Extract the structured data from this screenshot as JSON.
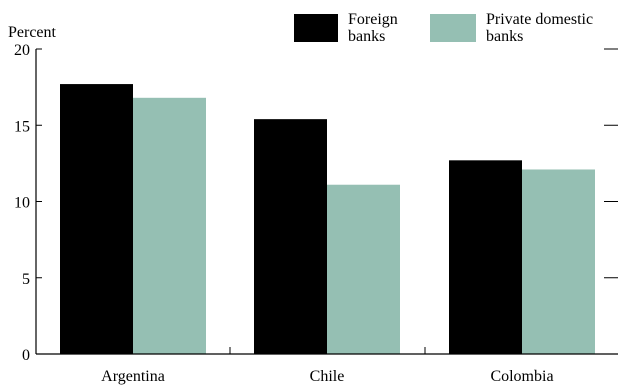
{
  "chart_data": {
    "type": "bar",
    "ylabel": "Percent",
    "ylim": [
      0,
      20
    ],
    "yticks": [
      0,
      5,
      10,
      15,
      20
    ],
    "categories": [
      "Argentina",
      "Chile",
      "Colombia"
    ],
    "series": [
      {
        "name": "Foreign banks",
        "legend_lines": [
          "Foreign",
          "banks"
        ],
        "color": "#000000",
        "values": [
          17.7,
          15.4,
          12.7
        ]
      },
      {
        "name": "Private domestic banks",
        "legend_lines": [
          "Private domestic",
          "banks"
        ],
        "color": "#95bfb3",
        "values": [
          16.8,
          11.1,
          12.1
        ]
      }
    ],
    "legend_position": "top-right",
    "grid": false
  }
}
